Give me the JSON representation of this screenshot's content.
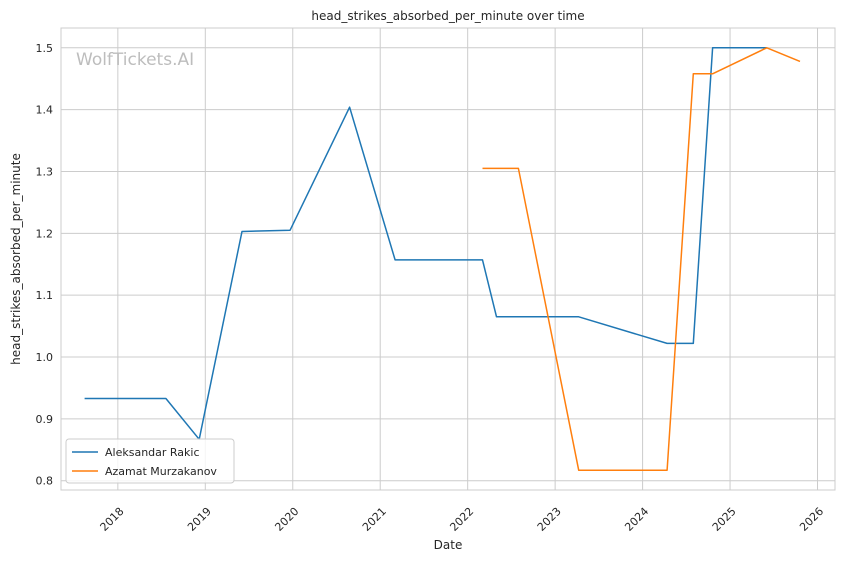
{
  "chart_data": {
    "type": "line",
    "title": "head_strikes_absorbed_per_minute over time",
    "xlabel": "Date",
    "ylabel": "head_strikes_absorbed_per_minute",
    "watermark": "WolfTickets.AI",
    "xlim": [
      2017.35,
      2026.2
    ],
    "ylim": [
      0.785,
      1.532
    ],
    "x_ticks": [
      2018,
      2019,
      2020,
      2021,
      2022,
      2023,
      2024,
      2025,
      2026
    ],
    "x_tick_labels": [
      "2018",
      "2019",
      "2020",
      "2021",
      "2022",
      "2023",
      "2024",
      "2025",
      "2026"
    ],
    "y_ticks": [
      0.8,
      0.9,
      1.0,
      1.1,
      1.2,
      1.3,
      1.4,
      1.5
    ],
    "y_tick_labels": [
      "0.8",
      "0.9",
      "1.0",
      "1.1",
      "1.2",
      "1.3",
      "1.4",
      "1.5"
    ],
    "grid": true,
    "legend_position": "lower-left",
    "series": [
      {
        "name": "Aleksandar Rakic",
        "color": "#1f77b4",
        "x": [
          2017.62,
          2018.55,
          2018.93,
          2019.42,
          2019.97,
          2020.65,
          2021.17,
          2022.17,
          2022.33,
          2023.27,
          2024.28,
          2024.58,
          2024.8,
          2025.42
        ],
        "y": [
          0.933,
          0.933,
          0.867,
          1.203,
          1.205,
          1.404,
          1.157,
          1.157,
          1.065,
          1.065,
          1.022,
          1.022,
          1.5,
          1.5
        ]
      },
      {
        "name": "Azamat Murzakanov",
        "color": "#ff7f0e",
        "x": [
          2022.17,
          2022.58,
          2023.27,
          2024.28,
          2024.58,
          2024.8,
          2025.42,
          2025.8
        ],
        "y": [
          1.305,
          1.305,
          0.817,
          0.817,
          1.458,
          1.458,
          1.5,
          1.478
        ]
      }
    ]
  }
}
